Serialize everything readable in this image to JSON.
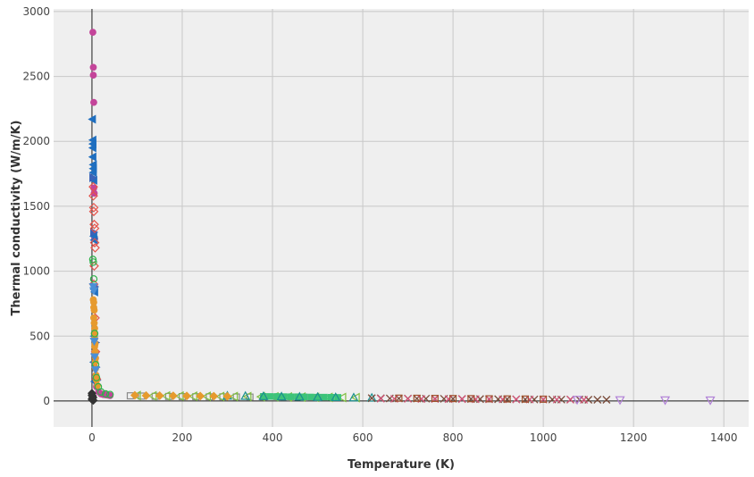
{
  "chart_data": {
    "type": "scatter",
    "title": "",
    "xlabel": "Temperature (K)",
    "ylabel": "Thermal conductivity (W/m/K)",
    "xlim": [
      -85,
      1455
    ],
    "ylim": [
      -200,
      3020
    ],
    "xticks": [
      0,
      200,
      400,
      600,
      800,
      1000,
      1200,
      1400
    ],
    "yticks": [
      0,
      500,
      1000,
      1500,
      2000,
      2500,
      3000
    ],
    "xtick_labels": [
      "0",
      "200",
      "400",
      "600",
      "800",
      "1000",
      "1200",
      "1400"
    ],
    "ytick_labels": [
      "0",
      "500",
      "1000",
      "1500",
      "2000",
      "2500",
      "3000"
    ],
    "grid": true,
    "legend": false,
    "plot_background": "#efefef",
    "grid_color": "#c8c8c8",
    "series": [
      {
        "marker": "circle",
        "color": "#c4459a",
        "points": [
          [
            2,
            2840
          ],
          [
            3,
            2570
          ],
          [
            3,
            2510
          ],
          [
            4,
            2300
          ],
          [
            4,
            1640
          ],
          [
            5,
            1600
          ],
          [
            6,
            1250
          ],
          [
            7,
            380
          ],
          [
            10,
            110
          ],
          [
            15,
            70
          ],
          [
            20,
            55
          ],
          [
            25,
            50
          ],
          [
            30,
            48
          ],
          [
            35,
            45
          ],
          [
            40,
            42
          ]
        ]
      },
      {
        "marker": "triangle-left",
        "color": "#1f6fc0",
        "points": [
          [
            1,
            2170
          ],
          [
            2,
            2010
          ],
          [
            2,
            1980
          ],
          [
            2,
            1950
          ],
          [
            2,
            1880
          ],
          [
            3,
            1820
          ],
          [
            3,
            1790
          ],
          [
            3,
            1760
          ],
          [
            4,
            1700
          ],
          [
            4,
            1270
          ],
          [
            5,
            1240
          ],
          [
            5,
            860
          ],
          [
            6,
            840
          ],
          [
            5,
            500
          ],
          [
            4,
            300
          ],
          [
            6,
            150
          ]
        ]
      },
      {
        "marker": "triangle-right",
        "color": "#3a63b8",
        "points": [
          [
            2,
            1720
          ],
          [
            4,
            1300
          ],
          [
            6,
            880
          ],
          [
            8,
            450
          ],
          [
            9,
            260
          ],
          [
            11,
            160
          ]
        ]
      },
      {
        "marker": "diamond-open",
        "color": "#e5534b",
        "points": [
          [
            3,
            1650
          ],
          [
            3,
            1580
          ],
          [
            4,
            1490
          ],
          [
            4,
            1460
          ],
          [
            5,
            1360
          ],
          [
            6,
            1330
          ],
          [
            6,
            1220
          ],
          [
            7,
            1180
          ],
          [
            5,
            1040
          ],
          [
            4,
            900
          ],
          [
            7,
            640
          ],
          [
            8,
            380
          ],
          [
            10,
            170
          ]
        ]
      },
      {
        "marker": "circle",
        "color": "#e69a2e",
        "points": [
          [
            3,
            780
          ],
          [
            4,
            760
          ],
          [
            4,
            720
          ],
          [
            5,
            700
          ],
          [
            4,
            640
          ],
          [
            5,
            600
          ],
          [
            6,
            560
          ],
          [
            5,
            520
          ],
          [
            6,
            480
          ],
          [
            7,
            440
          ],
          [
            6,
            420
          ],
          [
            7,
            380
          ],
          [
            8,
            330
          ],
          [
            7,
            300
          ],
          [
            8,
            250
          ],
          [
            9,
            200
          ],
          [
            10,
            160
          ],
          [
            12,
            120
          ]
        ]
      },
      {
        "marker": "circle-open",
        "color": "#2eb34a",
        "points": [
          [
            2,
            1090
          ],
          [
            3,
            1070
          ],
          [
            4,
            940
          ],
          [
            6,
            520
          ],
          [
            8,
            280
          ],
          [
            10,
            180
          ],
          [
            14,
            110
          ],
          [
            20,
            70
          ],
          [
            30,
            55
          ],
          [
            40,
            50
          ]
        ]
      },
      {
        "marker": "triangle-down",
        "color": "#4b8fd6",
        "points": [
          [
            3,
            880
          ],
          [
            4,
            850
          ],
          [
            5,
            460
          ],
          [
            6,
            340
          ],
          [
            8,
            240
          ]
        ]
      },
      {
        "marker": "square-open",
        "color": "#8a8a8a",
        "points": [
          [
            85,
            40
          ],
          [
            110,
            38
          ],
          [
            140,
            36
          ],
          [
            170,
            35
          ],
          [
            200,
            34
          ],
          [
            230,
            33
          ],
          [
            260,
            32
          ],
          [
            290,
            32
          ],
          [
            320,
            31
          ],
          [
            350,
            30
          ],
          [
            380,
            30
          ],
          [
            410,
            29
          ],
          [
            440,
            28
          ],
          [
            470,
            28
          ],
          [
            500,
            27
          ]
        ]
      },
      {
        "marker": "triangle-left-open",
        "color": "#7fbf3f",
        "points": [
          [
            100,
            42
          ],
          [
            135,
            40
          ],
          [
            165,
            39
          ],
          [
            195,
            38
          ],
          [
            225,
            37
          ],
          [
            255,
            36
          ],
          [
            285,
            35
          ],
          [
            315,
            35
          ],
          [
            345,
            34
          ],
          [
            375,
            33
          ],
          [
            405,
            32
          ],
          [
            435,
            31
          ],
          [
            465,
            30
          ],
          [
            495,
            29
          ],
          [
            525,
            28
          ],
          [
            555,
            27
          ],
          [
            585,
            26
          ]
        ]
      },
      {
        "marker": "square",
        "color": "#3cc47a",
        "points": [
          [
            380,
            36
          ],
          [
            395,
            35
          ],
          [
            410,
            35
          ],
          [
            425,
            34
          ],
          [
            440,
            33
          ],
          [
            455,
            33
          ],
          [
            470,
            32
          ],
          [
            485,
            31
          ],
          [
            500,
            30
          ],
          [
            515,
            30
          ],
          [
            530,
            29
          ],
          [
            545,
            28
          ]
        ]
      },
      {
        "marker": "triangle-up-open",
        "color": "#1a8f8f",
        "points": [
          [
            300,
            40
          ],
          [
            340,
            38
          ],
          [
            380,
            36
          ],
          [
            420,
            34
          ],
          [
            460,
            32
          ],
          [
            500,
            30
          ],
          [
            540,
            28
          ],
          [
            580,
            26
          ],
          [
            620,
            24
          ]
        ]
      },
      {
        "marker": "diamond",
        "color": "#e69a2e",
        "points": [
          [
            95,
            44
          ],
          [
            120,
            42
          ],
          [
            150,
            41
          ],
          [
            180,
            40
          ],
          [
            210,
            39
          ],
          [
            240,
            38
          ],
          [
            270,
            37
          ],
          [
            300,
            36
          ]
        ]
      },
      {
        "marker": "diamond",
        "color": "#333333",
        "points": [
          [
            0,
            60
          ],
          [
            1,
            40
          ],
          [
            2,
            25
          ],
          [
            0,
            15
          ],
          [
            1,
            8
          ],
          [
            3,
            5
          ],
          [
            2,
            30
          ],
          [
            0,
            45
          ]
        ]
      },
      {
        "marker": "x",
        "color": "#7a4b3a",
        "points": [
          [
            620,
            22
          ],
          [
            640,
            21
          ],
          [
            660,
            20
          ],
          [
            680,
            20
          ],
          [
            700,
            19
          ],
          [
            720,
            19
          ],
          [
            740,
            18
          ],
          [
            760,
            18
          ],
          [
            780,
            17
          ],
          [
            800,
            17
          ],
          [
            820,
            16
          ],
          [
            840,
            16
          ],
          [
            860,
            15
          ],
          [
            880,
            15
          ],
          [
            900,
            14
          ],
          [
            920,
            14
          ],
          [
            940,
            13
          ],
          [
            960,
            13
          ],
          [
            980,
            12
          ],
          [
            1000,
            12
          ],
          [
            1020,
            12
          ],
          [
            1040,
            11
          ],
          [
            1060,
            11
          ],
          [
            1080,
            11
          ],
          [
            1100,
            10
          ],
          [
            1120,
            10
          ],
          [
            1140,
            10
          ]
        ]
      },
      {
        "marker": "x",
        "color": "#d4547a",
        "points": [
          [
            640,
            18
          ],
          [
            670,
            17
          ],
          [
            700,
            17
          ],
          [
            730,
            16
          ],
          [
            760,
            16
          ],
          [
            790,
            15
          ],
          [
            820,
            15
          ],
          [
            850,
            14
          ],
          [
            880,
            14
          ],
          [
            910,
            13
          ],
          [
            940,
            13
          ],
          [
            970,
            12
          ],
          [
            1000,
            12
          ],
          [
            1030,
            11
          ],
          [
            1060,
            11
          ],
          [
            1090,
            10
          ]
        ]
      },
      {
        "marker": "triangle-down-open",
        "color": "#b07fd6",
        "points": [
          [
            1075,
            10
          ],
          [
            1170,
            8
          ],
          [
            1270,
            7
          ],
          [
            1370,
            6
          ]
        ]
      },
      {
        "marker": "square-open",
        "color": "#a0522d",
        "points": [
          [
            680,
            22
          ],
          [
            720,
            21
          ],
          [
            760,
            20
          ],
          [
            800,
            19
          ],
          [
            840,
            18
          ],
          [
            880,
            17
          ],
          [
            920,
            16
          ],
          [
            960,
            15
          ],
          [
            1000,
            14
          ]
        ]
      }
    ]
  }
}
